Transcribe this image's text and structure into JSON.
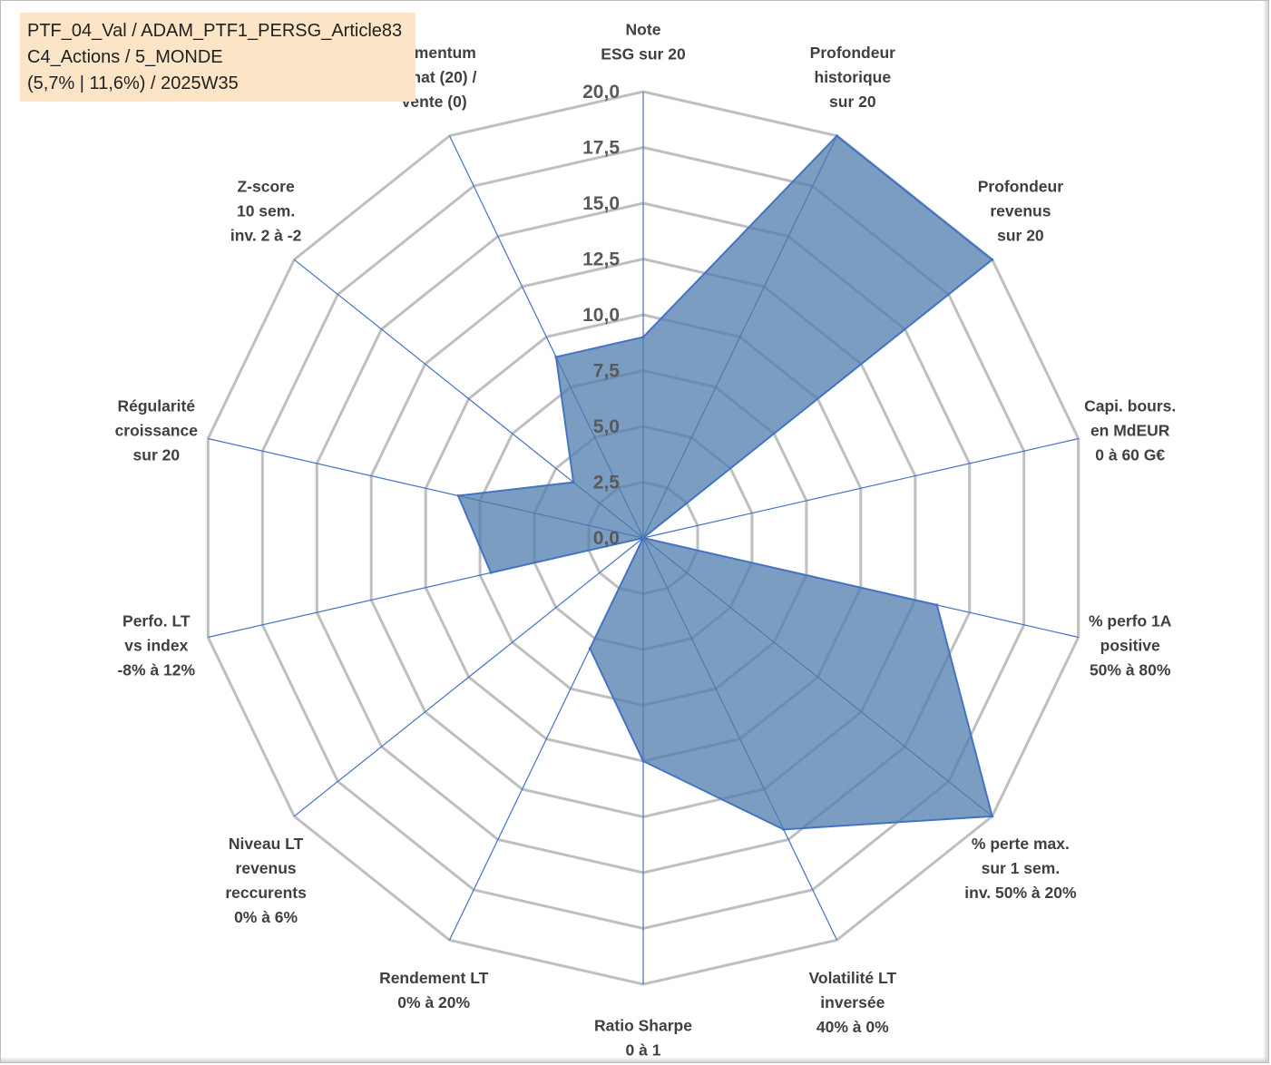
{
  "info": {
    "line1": "PTF_04_Val / ADAM_PTF1_PERSG_Article83",
    "line2": "C4_Actions / 5_MONDE",
    "line3": "(5,7% | 11,6%) / 2025W35"
  },
  "chart_data": {
    "type": "radar",
    "rmin": 0,
    "rmax": 20,
    "ticks": [
      "0,0",
      "2,5",
      "5,0",
      "7,5",
      "10,0",
      "12,5",
      "15,0",
      "17,5",
      "20,0"
    ],
    "axes": [
      [
        "Note",
        "ESG sur 20"
      ],
      [
        "Profondeur",
        "historique",
        "sur 20"
      ],
      [
        "Profondeur",
        "revenus",
        "sur 20"
      ],
      [
        "Capi. bours.",
        "en MdEUR",
        "0 à 60 G€"
      ],
      [
        "% perfo 1A",
        "positive",
        "50% à 80%"
      ],
      [
        "% perte max.",
        "sur 1 sem.",
        "inv. 50% à 20%"
      ],
      [
        "Volatilité LT",
        "inversée",
        "40% à 0%"
      ],
      [
        "Ratio Sharpe",
        "0 à 1"
      ],
      [
        "Rendement LT",
        "0% à 20%"
      ],
      [
        "Niveau LT",
        "revenus",
        "reccurents",
        "0% à 6%"
      ],
      [
        "Perfo. LT",
        "vs index",
        "-8% à 12%"
      ],
      [
        "Régularité",
        "croissance",
        "sur 20"
      ],
      [
        "Z-score",
        "10 sem.",
        "inv. 2 à -2"
      ],
      [
        "Momentum",
        "Achat (20) /",
        "Vente (0)"
      ]
    ],
    "series": [
      {
        "values": [
          9.0,
          20.0,
          20.0,
          0.0,
          13.5,
          20.0,
          14.5,
          10.0,
          5.5,
          0.0,
          7.0,
          8.5,
          4.0,
          9.0
        ]
      }
    ],
    "colors": {
      "fill": "#4f7cae",
      "stroke": "#4472c4",
      "grid": "#bfbfbf",
      "spoke": "#4472c4"
    }
  }
}
